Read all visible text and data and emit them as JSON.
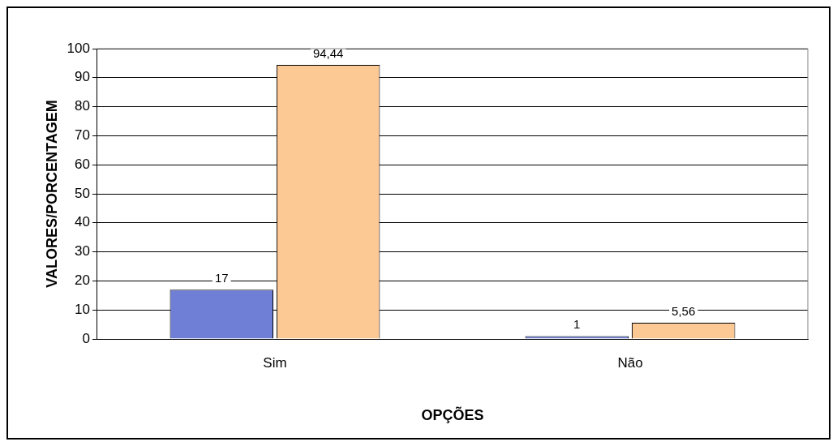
{
  "chart_data": {
    "type": "bar",
    "xlabel": "OPÇÕES",
    "ylabel": "VALORES/PORCENTAGEM",
    "categories": [
      "Sim",
      "Não"
    ],
    "series": [
      {
        "color": "#6f7fd6",
        "values": [
          17,
          1
        ],
        "value_labels": [
          "17",
          "1"
        ]
      },
      {
        "color": "#fcc995",
        "values": [
          94.44,
          5.56
        ],
        "value_labels": [
          "94,44",
          "5,56"
        ]
      }
    ],
    "ylim": [
      0,
      100
    ],
    "yticks": [
      0,
      10,
      20,
      30,
      40,
      50,
      60,
      70,
      80,
      90,
      100
    ],
    "grid": "y",
    "legend": false
  }
}
